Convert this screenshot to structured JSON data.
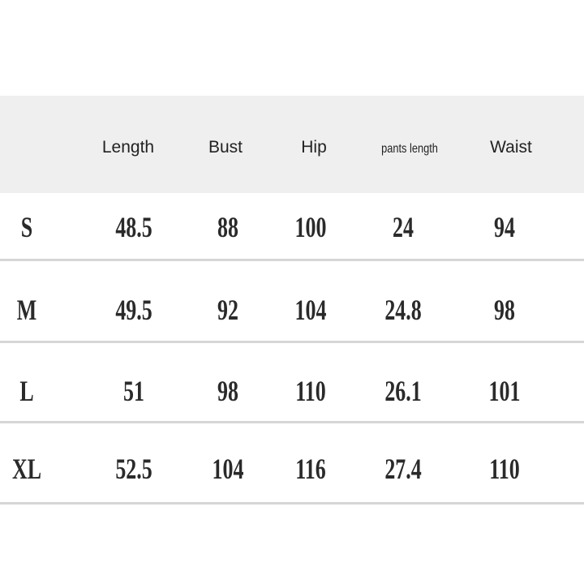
{
  "table": {
    "headers": [
      "",
      "Length",
      "Bust",
      "Hip",
      "pants length",
      "Waist"
    ],
    "rows": [
      {
        "size": "S",
        "values": [
          "48.5",
          "88",
          "100",
          "24",
          "94"
        ]
      },
      {
        "size": "M",
        "values": [
          "49.5",
          "92",
          "104",
          "24.8",
          "98"
        ]
      },
      {
        "size": "L",
        "values": [
          "51",
          "98",
          "110",
          "26.1",
          "101"
        ]
      },
      {
        "size": "XL",
        "values": [
          "52.5",
          "104",
          "116",
          "27.4",
          "110"
        ]
      }
    ]
  }
}
